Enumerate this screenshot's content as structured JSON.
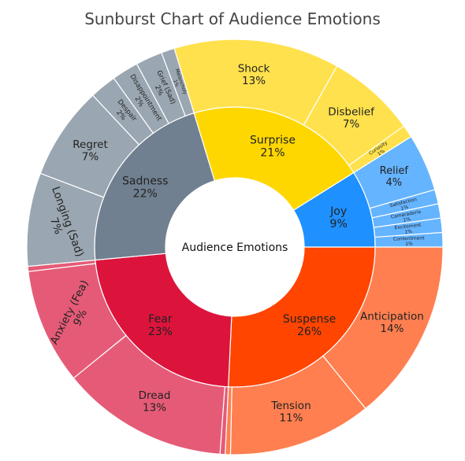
{
  "chart_data": {
    "type": "sunburst",
    "title": "Sunburst Chart of Audience Emotions",
    "root": "Audience Emotions",
    "colors": {
      "Suspense": "#ff4500",
      "Suspense_child": "#ff7f50",
      "Joy": "#1e90ff",
      "Joy_child": "#65b4ff",
      "Surprise": "#ffd700",
      "Surprise_child": "#ffe14d",
      "Sadness": "#708090",
      "Sadness_child": "#9aa6b1",
      "Fear": "#dc143c",
      "Fear_child": "#e55b77"
    },
    "categories": [
      {
        "name": "Suspense",
        "value": 26,
        "label": "26%",
        "children": [
          {
            "name": "Anticipation",
            "value": 14,
            "label": "14%"
          },
          {
            "name": "Tension",
            "value": 11,
            "label": "11%"
          },
          {
            "name": "",
            "value": 0.4,
            "label": ""
          }
        ]
      },
      {
        "name": "Fear",
        "value": 23,
        "label": "23%",
        "children": [
          {
            "name": "",
            "value": 0.4,
            "label": ""
          },
          {
            "name": "Dread",
            "value": 13,
            "label": "13%"
          },
          {
            "name": "Anxiety (Fea)",
            "value": 9,
            "label": "9%"
          },
          {
            "name": "",
            "value": 0.4,
            "label": ""
          }
        ]
      },
      {
        "name": "Sadness",
        "value": 22,
        "label": "22%",
        "children": [
          {
            "name": "Longing (Sad)",
            "value": 7,
            "label": "7%"
          },
          {
            "name": "Regret",
            "value": 7,
            "label": "7%"
          },
          {
            "name": "Despair",
            "value": 2,
            "label": "2%"
          },
          {
            "name": "Disappointment",
            "value": 2,
            "label": "2%"
          },
          {
            "name": "Grief (Sad)",
            "value": 2,
            "label": "2%"
          },
          {
            "name": "Melancholy",
            "value": 1,
            "label": "1%"
          }
        ]
      },
      {
        "name": "Surprise",
        "value": 21,
        "label": "21%",
        "children": [
          {
            "name": "Shock",
            "value": 13,
            "label": "13%"
          },
          {
            "name": "Disbelief",
            "value": 7,
            "label": "7%"
          },
          {
            "name": "Curiosity",
            "value": 1,
            "label": "1%"
          }
        ]
      },
      {
        "name": "Joy",
        "value": 9,
        "label": "9%",
        "children": [
          {
            "name": "Relief",
            "value": 4,
            "label": "4%"
          },
          {
            "name": "Satisfaction",
            "value": 1,
            "label": "1%"
          },
          {
            "name": "Camaraderie",
            "value": 1,
            "label": "1%"
          },
          {
            "name": "Excitement",
            "value": 1,
            "label": "1%"
          },
          {
            "name": "Contentment",
            "value": 1,
            "label": "1%"
          }
        ]
      }
    ]
  }
}
